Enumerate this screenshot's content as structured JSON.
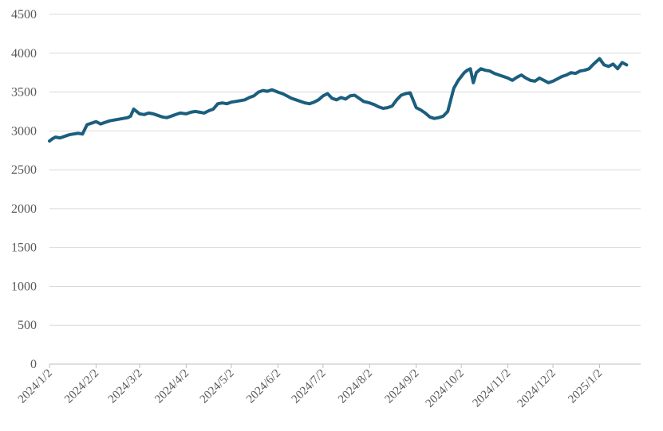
{
  "chart_data": {
    "type": "line",
    "title": "",
    "xlabel": "",
    "ylabel": "",
    "ylim": [
      0,
      4500
    ],
    "yticks": [
      0,
      500,
      1000,
      1500,
      2000,
      2500,
      3000,
      3500,
      4000,
      4500
    ],
    "xticks": [
      "2024/1/2",
      "2024/2/2",
      "2024/3/2",
      "2024/4/2",
      "2024/5/2",
      "2024/6/2",
      "2024/7/2",
      "2024/8/2",
      "2024/9/2",
      "2024/10/2",
      "2024/11/2",
      "2024/12/2",
      "2025/1/2"
    ],
    "grid": "horizontal",
    "line_color": "#1b5e7e",
    "series": [
      {
        "x": [
          "2024-01-02",
          "2024-01-04",
          "2024-01-06",
          "2024-01-09",
          "2024-01-12",
          "2024-01-15",
          "2024-01-18",
          "2024-01-21",
          "2024-01-24",
          "2024-01-27",
          "2024-01-30",
          "2024-02-02",
          "2024-02-05",
          "2024-02-08",
          "2024-02-11",
          "2024-02-14",
          "2024-02-17",
          "2024-02-20",
          "2024-02-23",
          "2024-02-25",
          "2024-02-27",
          "2024-02-29",
          "2024-03-02",
          "2024-03-05",
          "2024-03-08",
          "2024-03-11",
          "2024-03-14",
          "2024-03-17",
          "2024-03-20",
          "2024-03-23",
          "2024-03-26",
          "2024-03-29",
          "2024-04-02",
          "2024-04-05",
          "2024-04-08",
          "2024-04-11",
          "2024-04-14",
          "2024-04-17",
          "2024-04-20",
          "2024-04-23",
          "2024-04-26",
          "2024-04-29",
          "2024-05-02",
          "2024-05-05",
          "2024-05-08",
          "2024-05-11",
          "2024-05-14",
          "2024-05-17",
          "2024-05-20",
          "2024-05-23",
          "2024-05-26",
          "2024-05-29",
          "2024-06-02",
          "2024-06-05",
          "2024-06-08",
          "2024-06-11",
          "2024-06-14",
          "2024-06-17",
          "2024-06-20",
          "2024-06-23",
          "2024-06-26",
          "2024-06-29",
          "2024-07-02",
          "2024-07-05",
          "2024-07-08",
          "2024-07-11",
          "2024-07-14",
          "2024-07-17",
          "2024-07-20",
          "2024-07-23",
          "2024-07-26",
          "2024-07-29",
          "2024-08-02",
          "2024-08-05",
          "2024-08-08",
          "2024-08-11",
          "2024-08-14",
          "2024-08-17",
          "2024-08-20",
          "2024-08-23",
          "2024-08-26",
          "2024-08-29",
          "2024-09-02",
          "2024-09-05",
          "2024-09-08",
          "2024-09-11",
          "2024-09-14",
          "2024-09-17",
          "2024-09-20",
          "2024-09-23",
          "2024-09-25",
          "2024-09-27",
          "2024-09-30",
          "2024-10-02",
          "2024-10-04",
          "2024-10-06",
          "2024-10-08",
          "2024-10-10",
          "2024-10-12",
          "2024-10-15",
          "2024-10-18",
          "2024-10-21",
          "2024-10-24",
          "2024-10-27",
          "2024-10-30",
          "2024-11-02",
          "2024-11-05",
          "2024-11-08",
          "2024-11-11",
          "2024-11-14",
          "2024-11-17",
          "2024-11-20",
          "2024-11-23",
          "2024-11-26",
          "2024-11-29",
          "2024-12-02",
          "2024-12-05",
          "2024-12-08",
          "2024-12-11",
          "2024-12-14",
          "2024-12-17",
          "2024-12-20",
          "2024-12-23",
          "2024-12-26",
          "2024-12-29",
          "2025-01-02",
          "2025-01-05",
          "2025-01-08",
          "2025-01-11",
          "2025-01-14",
          "2025-01-17",
          "2025-01-20"
        ],
        "values": [
          2870,
          2900,
          2920,
          2910,
          2930,
          2950,
          2960,
          2970,
          2960,
          3080,
          3100,
          3120,
          3090,
          3110,
          3130,
          3140,
          3150,
          3160,
          3170,
          3190,
          3280,
          3250,
          3220,
          3210,
          3230,
          3220,
          3200,
          3180,
          3170,
          3190,
          3210,
          3230,
          3220,
          3240,
          3250,
          3240,
          3230,
          3260,
          3280,
          3350,
          3360,
          3350,
          3370,
          3380,
          3390,
          3400,
          3430,
          3450,
          3500,
          3520,
          3510,
          3530,
          3500,
          3480,
          3450,
          3420,
          3400,
          3380,
          3360,
          3350,
          3370,
          3400,
          3450,
          3480,
          3420,
          3400,
          3430,
          3410,
          3450,
          3460,
          3420,
          3380,
          3360,
          3340,
          3310,
          3290,
          3300,
          3320,
          3400,
          3460,
          3480,
          3490,
          3300,
          3270,
          3230,
          3180,
          3160,
          3170,
          3190,
          3250,
          3400,
          3550,
          3650,
          3700,
          3750,
          3780,
          3800,
          3620,
          3750,
          3800,
          3780,
          3770,
          3740,
          3720,
          3700,
          3680,
          3650,
          3690,
          3720,
          3680,
          3650,
          3640,
          3680,
          3650,
          3620,
          3640,
          3670,
          3700,
          3720,
          3750,
          3740,
          3770,
          3780,
          3800,
          3860,
          3930,
          3850,
          3830,
          3860,
          3800,
          3880,
          3850
        ]
      }
    ]
  }
}
